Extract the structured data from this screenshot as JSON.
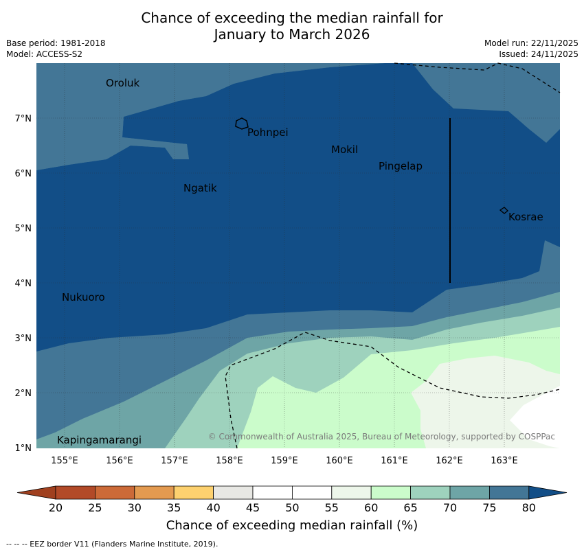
{
  "title_line1": "Chance of exceeding the median rainfall for",
  "title_line2": "January to March 2026",
  "meta_left": {
    "base_period": "Base period: 1981-2018",
    "model": "Model: ACCESS-S2"
  },
  "meta_right": {
    "model_run": "Model run: 22/11/2025",
    "issued": "Issued: 24/11/2025"
  },
  "map": {
    "lon_ticks": [
      "155°E",
      "156°E",
      "157°E",
      "158°E",
      "159°E",
      "160°E",
      "161°E",
      "162°E",
      "163°E"
    ],
    "lat_ticks": [
      "7°N",
      "6°N",
      "5°N",
      "4°N",
      "3°N",
      "2°N",
      "1°N"
    ],
    "places": [
      {
        "name": "Oroluk"
      },
      {
        "name": "Pohnpei"
      },
      {
        "name": "Mokil"
      },
      {
        "name": "Pingelap"
      },
      {
        "name": "Ngatik"
      },
      {
        "name": "Kosrae"
      },
      {
        "name": "Nukuoro"
      },
      {
        "name": "Kapingamarangi"
      }
    ],
    "copyright": "© Commonwealth of Australia 2025, Bureau of Meteorology, supported by COSPPac"
  },
  "colorbar": {
    "ticks": [
      "20",
      "25",
      "30",
      "35",
      "40",
      "45",
      "50",
      "55",
      "60",
      "65",
      "70",
      "75",
      "80"
    ],
    "colors": [
      "#b24a28",
      "#cc6a38",
      "#e39a50",
      "#fdd16f",
      "#e8e8e4",
      "#ffffff",
      "#ffffff",
      "#edf6ea",
      "#cbfccb",
      "#9ed2bd",
      "#6ea5a6",
      "#437696",
      "#124e87"
    ],
    "label": "Chance of exceeding median rainfall (%)"
  },
  "footer": "--  --  -- EEZ border V11 (Flanders Marine Institute, 2019)."
}
